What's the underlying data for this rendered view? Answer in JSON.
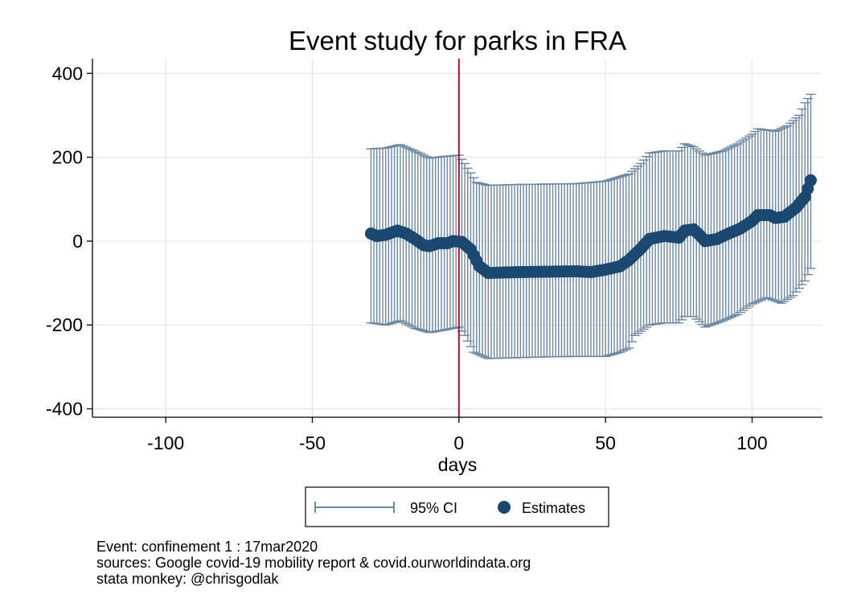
{
  "chart_data": {
    "type": "scatter",
    "title": "Event study for parks in FRA",
    "xlabel": "days",
    "ylabel": "",
    "xlim": [
      -125,
      124
    ],
    "ylim": [
      -420,
      435
    ],
    "xticks": [
      -100,
      -50,
      0,
      50,
      100
    ],
    "yticks": [
      400,
      200,
      0,
      -200,
      -400
    ],
    "xtick_labels": [
      "-100",
      "-50",
      "0",
      "50",
      "100"
    ],
    "ytick_labels": [
      "400",
      "200",
      "0",
      "-200",
      "-400"
    ],
    "grid": true,
    "event_line_x": 0,
    "legend": {
      "position": "bottom",
      "entries": [
        "95% CI",
        "Estimates"
      ]
    },
    "colors": {
      "estimates": "#1a4870",
      "ci": "#6a87a3",
      "event_line": "#b01030",
      "grid": "#e6e6e6"
    },
    "series": [
      {
        "name": "Estimates",
        "x_start": -30,
        "x_end": 120,
        "y_knots": [
          [
            -30,
            18
          ],
          [
            -28,
            12
          ],
          [
            -25,
            15
          ],
          [
            -21,
            25
          ],
          [
            -18,
            18
          ],
          [
            -15,
            5
          ],
          [
            -12,
            -10
          ],
          [
            -10,
            -12
          ],
          [
            -7,
            -5
          ],
          [
            -4,
            -5
          ],
          [
            -2,
            0
          ],
          [
            1,
            -2
          ],
          [
            4,
            -20
          ],
          [
            7,
            -60
          ],
          [
            10,
            -76
          ],
          [
            20,
            -74
          ],
          [
            30,
            -73
          ],
          [
            40,
            -72
          ],
          [
            45,
            -74
          ],
          [
            50,
            -68
          ],
          [
            55,
            -60
          ],
          [
            58,
            -45
          ],
          [
            62,
            -18
          ],
          [
            65,
            5
          ],
          [
            70,
            12
          ],
          [
            73,
            10
          ],
          [
            75,
            8
          ],
          [
            77,
            25
          ],
          [
            80,
            28
          ],
          [
            82,
            15
          ],
          [
            84,
            0
          ],
          [
            88,
            5
          ],
          [
            92,
            18
          ],
          [
            96,
            30
          ],
          [
            100,
            48
          ],
          [
            102,
            62
          ],
          [
            106,
            62
          ],
          [
            108,
            55
          ],
          [
            111,
            58
          ],
          [
            115,
            80
          ],
          [
            118,
            105
          ],
          [
            120,
            145
          ]
        ]
      },
      {
        "name": "95% CI",
        "upper_knots": [
          [
            -30,
            220
          ],
          [
            -25,
            222
          ],
          [
            -20,
            230
          ],
          [
            -15,
            215
          ],
          [
            -10,
            198
          ],
          [
            -5,
            202
          ],
          [
            0,
            205
          ],
          [
            2,
            185
          ],
          [
            6,
            140
          ],
          [
            10,
            133
          ],
          [
            20,
            135
          ],
          [
            30,
            136
          ],
          [
            40,
            137
          ],
          [
            50,
            143
          ],
          [
            58,
            160
          ],
          [
            62,
            185
          ],
          [
            65,
            210
          ],
          [
            70,
            215
          ],
          [
            75,
            215
          ],
          [
            77,
            232
          ],
          [
            80,
            225
          ],
          [
            84,
            205
          ],
          [
            90,
            215
          ],
          [
            95,
            232
          ],
          [
            100,
            255
          ],
          [
            102,
            268
          ],
          [
            108,
            262
          ],
          [
            112,
            275
          ],
          [
            116,
            300
          ],
          [
            118,
            330
          ],
          [
            120,
            350
          ]
        ],
        "lower_knots": [
          [
            -30,
            -195
          ],
          [
            -25,
            -200
          ],
          [
            -20,
            -190
          ],
          [
            -15,
            -208
          ],
          [
            -10,
            -218
          ],
          [
            -5,
            -212
          ],
          [
            0,
            -205
          ],
          [
            2,
            -225
          ],
          [
            5,
            -265
          ],
          [
            10,
            -280
          ],
          [
            20,
            -278
          ],
          [
            30,
            -276
          ],
          [
            40,
            -275
          ],
          [
            50,
            -275
          ],
          [
            55,
            -265
          ],
          [
            58,
            -255
          ],
          [
            60,
            -225
          ],
          [
            65,
            -200
          ],
          [
            70,
            -195
          ],
          [
            75,
            -195
          ],
          [
            77,
            -180
          ],
          [
            80,
            -180
          ],
          [
            84,
            -205
          ],
          [
            90,
            -190
          ],
          [
            95,
            -175
          ],
          [
            100,
            -150
          ],
          [
            105,
            -135
          ],
          [
            110,
            -148
          ],
          [
            114,
            -130
          ],
          [
            118,
            -95
          ],
          [
            120,
            -65
          ]
        ]
      }
    ]
  },
  "notes": [
    "Event: confinement 1 : 17mar2020",
    "sources: Google covid-19 mobility report & covid.ourworldindata.org",
    "stata monkey: @chrisgodlak"
  ]
}
